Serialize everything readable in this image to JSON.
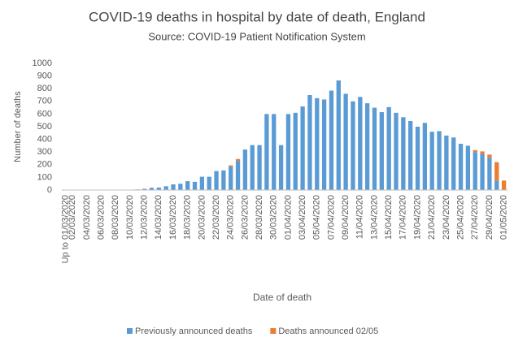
{
  "chart_data": {
    "type": "stacked_bar",
    "title": "COVID-19 deaths in hospital by date of death, England",
    "subtitle": "Source: COVID-19 Patient Notification System",
    "y_label": "Number of deaths",
    "x_label": "Date of death",
    "categories": [
      "Up to 01/03/2020",
      "02/03/2020",
      null,
      "04/03/2020",
      null,
      "06/03/2020",
      null,
      "08/03/2020",
      null,
      "10/03/2020",
      null,
      "12/03/2020",
      null,
      "14/03/2020",
      null,
      "16/03/2020",
      null,
      "18/03/2020",
      null,
      "20/03/2020",
      null,
      "22/03/2020",
      null,
      "24/03/2020",
      null,
      "26/03/2020",
      null,
      "28/03/2020",
      null,
      "30/03/2020",
      null,
      "01/04/2020",
      null,
      "03/04/2020",
      null,
      "05/04/2020",
      null,
      "07/04/2020",
      null,
      "09/04/2020",
      null,
      "11/04/2020",
      null,
      "13/04/2020",
      null,
      "15/04/2020",
      null,
      "17/04/2020",
      null,
      "19/04/2020",
      null,
      "21/04/2020",
      null,
      "23/04/2020",
      null,
      "25/04/2020",
      null,
      "27/04/2020",
      null,
      "29/04/2020",
      null,
      "01/05/2020"
    ],
    "series": [
      {
        "name": "Previously announced deaths",
        "color": "#5b9bd5",
        "values": [
          0,
          0,
          0,
          0,
          0,
          0,
          0,
          0,
          0,
          2,
          5,
          10,
          18,
          20,
          30,
          45,
          50,
          70,
          65,
          105,
          105,
          150,
          155,
          185,
          230,
          320,
          355,
          355,
          600,
          600,
          355,
          600,
          610,
          660,
          750,
          725,
          715,
          785,
          865,
          760,
          700,
          735,
          685,
          650,
          615,
          655,
          610,
          575,
          545,
          500,
          530,
          460,
          465,
          430,
          415,
          365,
          350,
          300,
          285,
          255,
          75,
          0
        ]
      },
      {
        "name": "Deaths announced 02/05",
        "color": "#ed7d31",
        "values": [
          0,
          0,
          0,
          0,
          0,
          0,
          0,
          0,
          0,
          0,
          0,
          0,
          0,
          0,
          0,
          0,
          0,
          0,
          0,
          0,
          0,
          0,
          0,
          10,
          15,
          0,
          0,
          0,
          0,
          0,
          0,
          0,
          0,
          0,
          0,
          0,
          0,
          0,
          0,
          0,
          0,
          0,
          0,
          0,
          0,
          0,
          0,
          0,
          0,
          0,
          0,
          0,
          0,
          0,
          0,
          0,
          0,
          15,
          20,
          25,
          145,
          75
        ]
      }
    ],
    "ylim": [
      0,
      1000
    ],
    "yticks": [
      0,
      100,
      200,
      300,
      400,
      500,
      600,
      700,
      800,
      900,
      1000
    ],
    "grid": false,
    "legend": "bottom"
  }
}
